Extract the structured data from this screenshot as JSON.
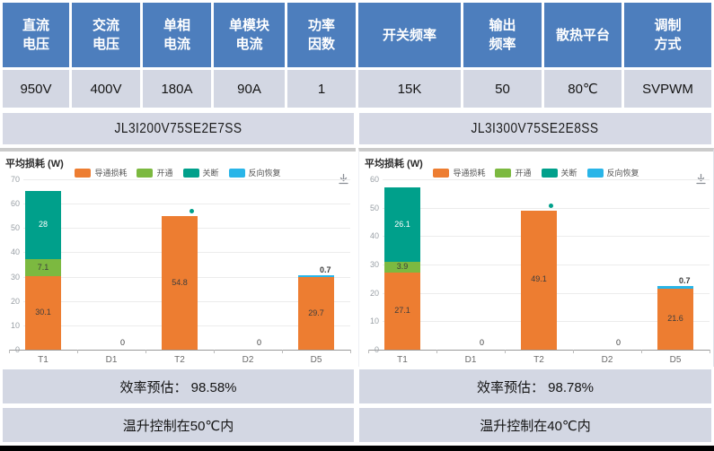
{
  "colors": {
    "header_bg": "#4d7ebd",
    "row_bg": "#d3d7e3",
    "conduction_orange": "#ed7d31",
    "turn_on_green": "#7cb940",
    "turn_off_teal": "#00a08b",
    "reverse_recovery_cyan": "#29b5e8",
    "bottom_bar": "#000000"
  },
  "spec_table": {
    "headers": [
      "直流\n电压",
      "交流\n电压",
      "单相\n电流",
      "单模块\n电流",
      "功率\n因数",
      "开关频率",
      "输出\n频率",
      "散热平台",
      "调制\n方式"
    ],
    "values": [
      "950V",
      "400V",
      "180A",
      "90A",
      "1",
      "15K",
      "50",
      "80℃",
      "SVPWM"
    ]
  },
  "panels": [
    {
      "module": "JL3I200V75SE2E7SS",
      "efficiency": "效率预估： 98.58%",
      "temperature": "温升控制在50℃内"
    },
    {
      "module": "JL3I300V75SE2E8SS",
      "efficiency": "效率预估： 98.78%",
      "temperature": "温升控制在40℃内"
    }
  ],
  "chart_data": [
    {
      "type": "bar",
      "stacked": true,
      "title": "平均损耗 (W)",
      "categories": [
        "T1",
        "D1",
        "T2",
        "D2",
        "D5"
      ],
      "series": [
        {
          "name": "导通损耗",
          "color": "#ed7d31",
          "values": [
            30.1,
            0,
            54.8,
            0,
            29.7
          ]
        },
        {
          "name": "开通",
          "color": "#7cb940",
          "values": [
            7.1,
            0,
            0,
            0,
            0
          ]
        },
        {
          "name": "关断",
          "color": "#00a08b",
          "values": [
            28,
            0,
            0,
            0,
            0
          ]
        },
        {
          "name": "反向恢复",
          "color": "#29b5e8",
          "values": [
            0,
            0,
            0,
            0,
            0.7
          ]
        }
      ],
      "ylim": [
        0,
        70
      ],
      "ytick_step": 10,
      "zero_label_categories": [
        "D1",
        "D2"
      ],
      "top_marker": {
        "category": "T2",
        "color": "#00a08b"
      },
      "legend_position": "top",
      "grid": true
    },
    {
      "type": "bar",
      "stacked": true,
      "title": "平均损耗 (W)",
      "categories": [
        "T1",
        "D1",
        "T2",
        "D2",
        "D5"
      ],
      "series": [
        {
          "name": "导通损耗",
          "color": "#ed7d31",
          "values": [
            27.1,
            0,
            49.1,
            0,
            21.6
          ]
        },
        {
          "name": "开通",
          "color": "#7cb940",
          "values": [
            3.9,
            0,
            0,
            0,
            0
          ]
        },
        {
          "name": "关断",
          "color": "#00a08b",
          "values": [
            26.1,
            0,
            0,
            0,
            0
          ]
        },
        {
          "name": "反向恢复",
          "color": "#29b5e8",
          "values": [
            0,
            0,
            0,
            0,
            0.7
          ]
        }
      ],
      "ylim": [
        0,
        60
      ],
      "ytick_step": 10,
      "zero_label_categories": [
        "D1",
        "D2"
      ],
      "top_marker": {
        "category": "T2",
        "color": "#00a08b"
      },
      "legend_position": "top",
      "grid": true
    }
  ]
}
